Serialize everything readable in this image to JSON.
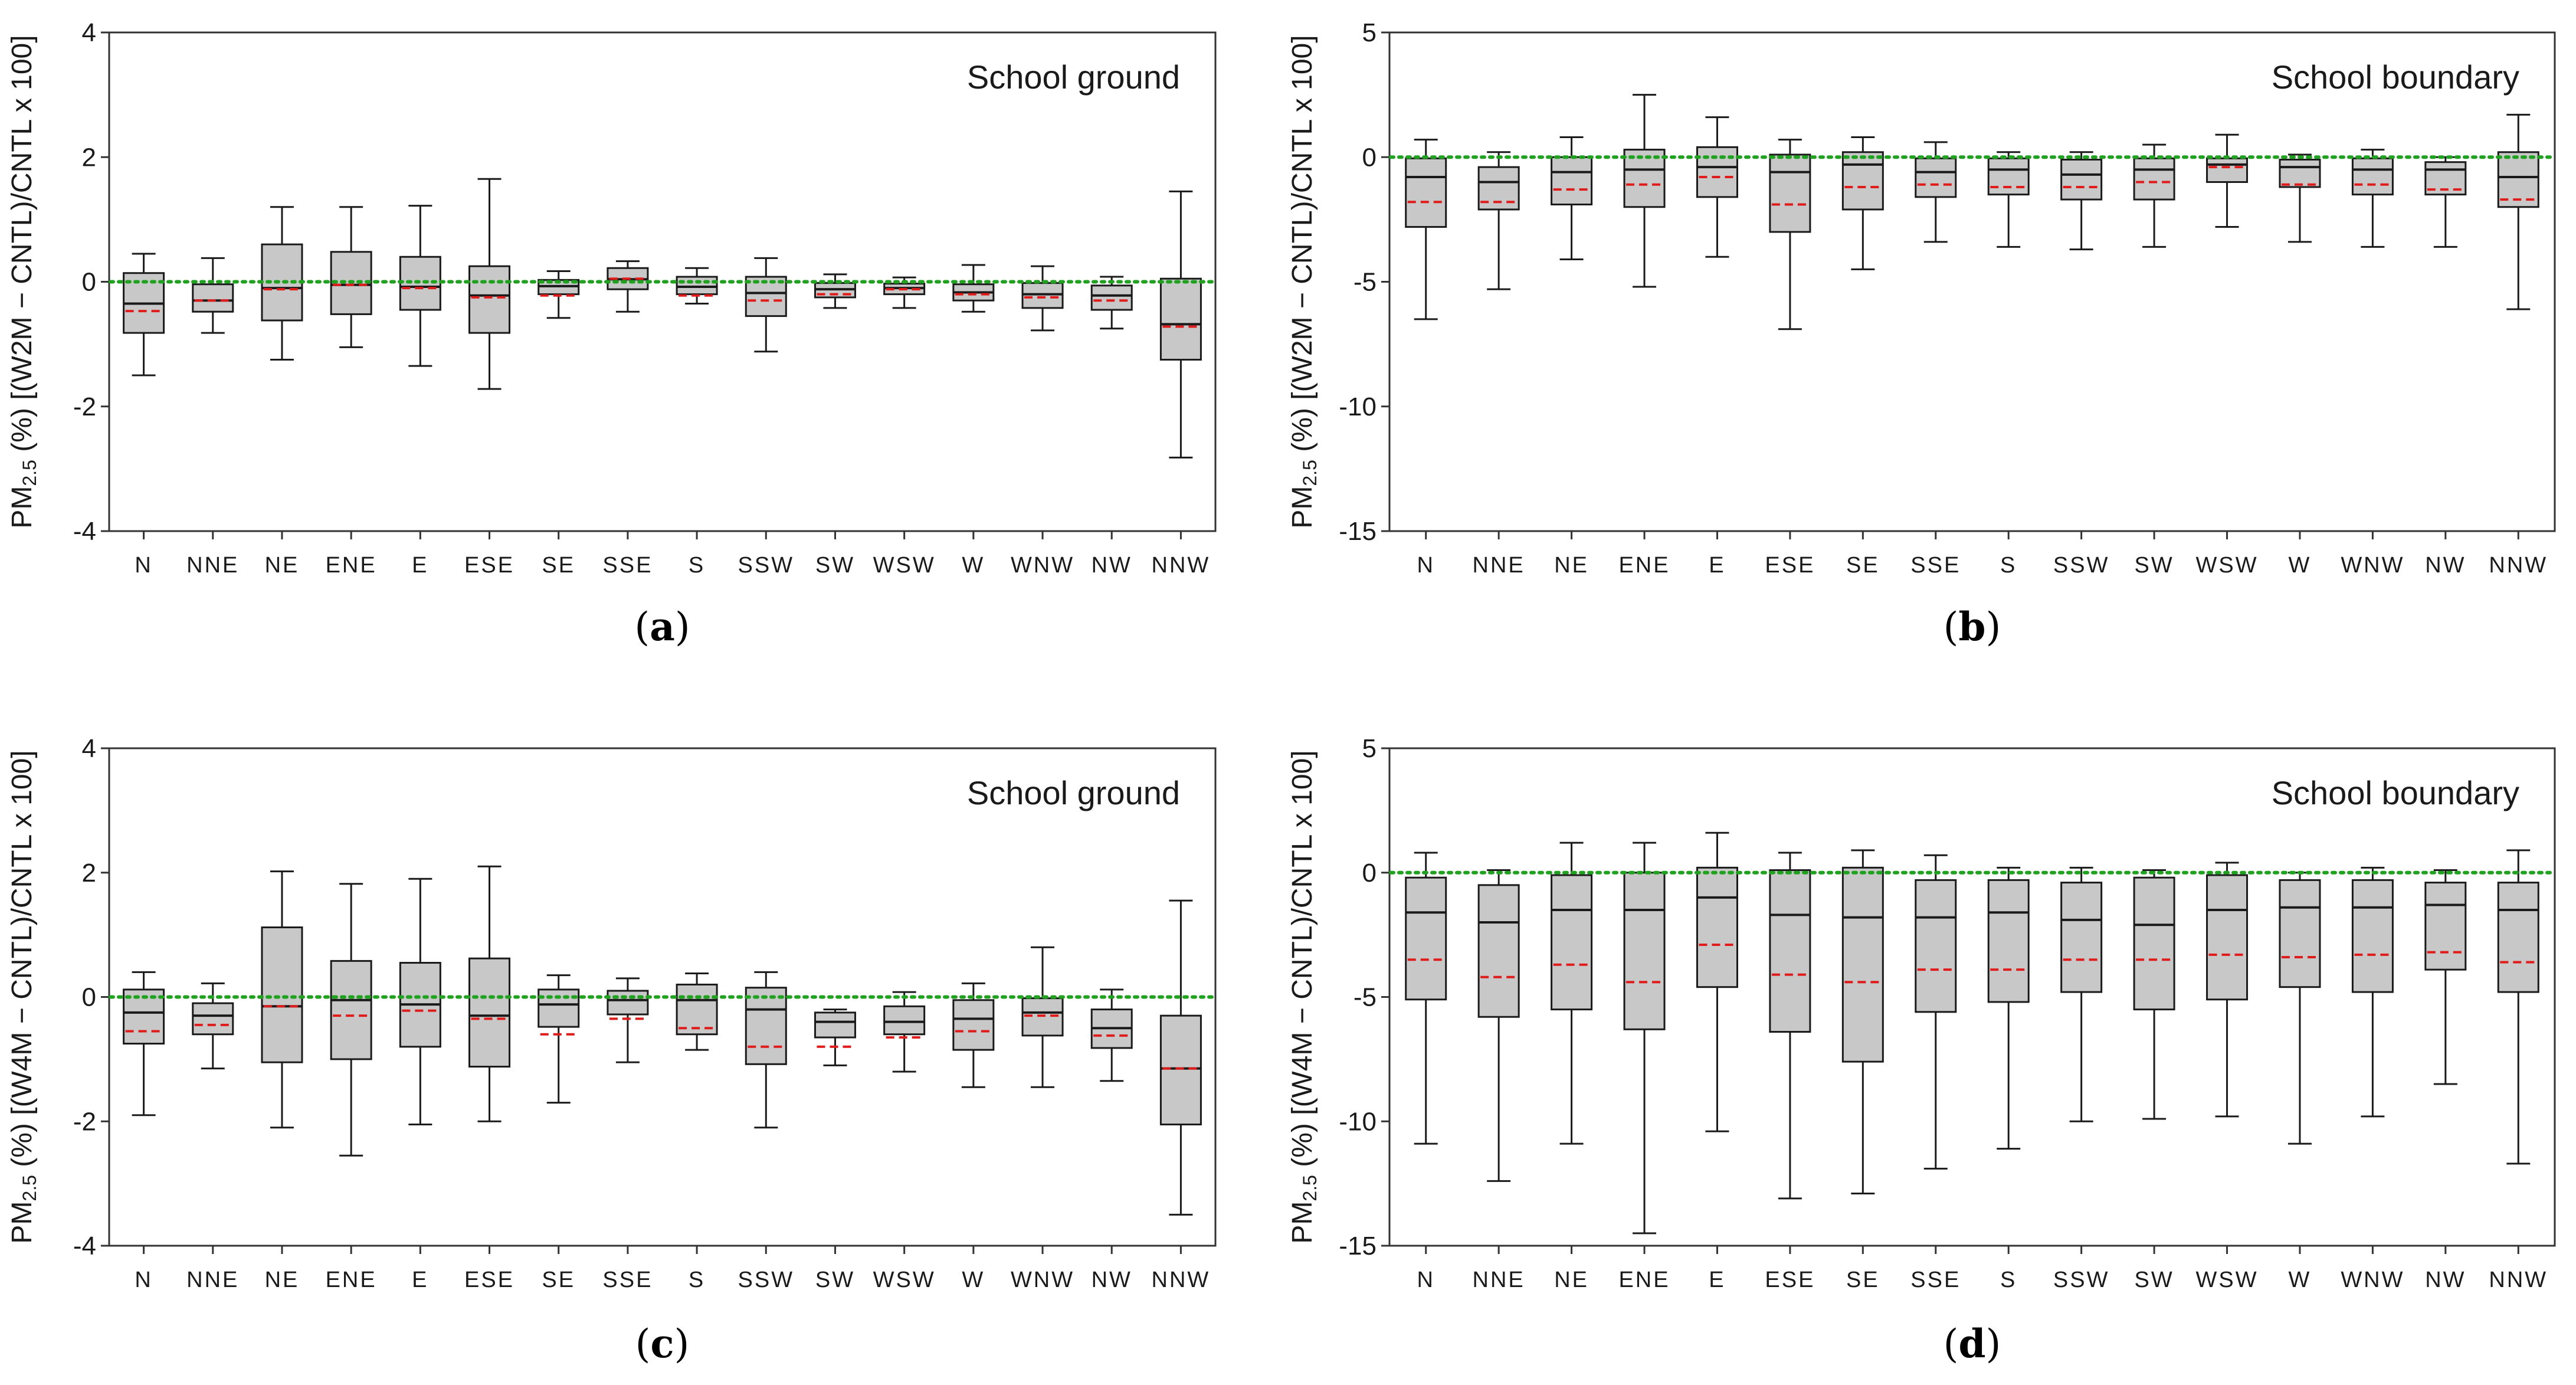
{
  "chart_data": [
    {
      "id": "a",
      "panel_label": "a",
      "type": "box",
      "title": "School ground",
      "ylabel": {
        "prefix": "PM",
        "subscript": "2.5",
        "rest": " (%) [(W2M − CNTL)/CNTL x 100]"
      },
      "ylim": [
        -4,
        4
      ],
      "yticks": [
        4,
        2,
        0,
        -2,
        -4
      ],
      "reference_line": 0,
      "categories": [
        "N",
        "NNE",
        "NE",
        "ENE",
        "E",
        "ESE",
        "SE",
        "SSE",
        "S",
        "SSW",
        "SW",
        "WSW",
        "W",
        "WNW",
        "NW",
        "NNW"
      ],
      "boxes": [
        {
          "whislo": -1.5,
          "q1": -0.82,
          "med": -0.35,
          "q3": 0.14,
          "whishi": 0.45,
          "mean": -0.47
        },
        {
          "whislo": -0.82,
          "q1": -0.48,
          "med": -0.3,
          "q3": -0.04,
          "whishi": 0.38,
          "mean": -0.3
        },
        {
          "whislo": -1.25,
          "q1": -0.62,
          "med": -0.1,
          "q3": 0.6,
          "whishi": 1.2,
          "mean": -0.12
        },
        {
          "whislo": -1.05,
          "q1": -0.52,
          "med": -0.05,
          "q3": 0.48,
          "whishi": 1.2,
          "mean": -0.05
        },
        {
          "whislo": -1.35,
          "q1": -0.45,
          "med": -0.08,
          "q3": 0.4,
          "whishi": 1.22,
          "mean": -0.1
        },
        {
          "whislo": -1.72,
          "q1": -0.82,
          "med": -0.22,
          "q3": 0.25,
          "whishi": 1.65,
          "mean": -0.25
        },
        {
          "whislo": -0.58,
          "q1": -0.2,
          "med": -0.07,
          "q3": 0.03,
          "whishi": 0.17,
          "mean": -0.22
        },
        {
          "whislo": -0.48,
          "q1": -0.12,
          "med": 0.04,
          "q3": 0.22,
          "whishi": 0.33,
          "mean": 0.05
        },
        {
          "whislo": -0.35,
          "q1": -0.2,
          "med": -0.08,
          "q3": 0.08,
          "whishi": 0.22,
          "mean": -0.22
        },
        {
          "whislo": -1.12,
          "q1": -0.55,
          "med": -0.18,
          "q3": 0.08,
          "whishi": 0.38,
          "mean": -0.3
        },
        {
          "whislo": -0.42,
          "q1": -0.25,
          "med": -0.12,
          "q3": -0.02,
          "whishi": 0.12,
          "mean": -0.2
        },
        {
          "whislo": -0.42,
          "q1": -0.2,
          "med": -0.1,
          "q3": -0.03,
          "whishi": 0.07,
          "mean": -0.12
        },
        {
          "whislo": -0.48,
          "q1": -0.3,
          "med": -0.17,
          "q3": -0.04,
          "whishi": 0.27,
          "mean": -0.2
        },
        {
          "whislo": -0.78,
          "q1": -0.42,
          "med": -0.2,
          "q3": -0.02,
          "whishi": 0.25,
          "mean": -0.25
        },
        {
          "whislo": -0.75,
          "q1": -0.45,
          "med": -0.22,
          "q3": -0.06,
          "whishi": 0.08,
          "mean": -0.3
        },
        {
          "whislo": -2.82,
          "q1": -1.25,
          "med": -0.68,
          "q3": 0.05,
          "whishi": 1.45,
          "mean": -0.72
        }
      ]
    },
    {
      "id": "b",
      "panel_label": "b",
      "type": "box",
      "title": "School boundary",
      "ylabel": {
        "prefix": "PM",
        "subscript": "2.5",
        "rest": " (%) [(W2M − CNTL)/CNTL x 100]"
      },
      "ylim": [
        -15,
        5
      ],
      "yticks": [
        5,
        0,
        -5,
        -10,
        -15
      ],
      "reference_line": 0,
      "categories": [
        "N",
        "NNE",
        "NE",
        "ENE",
        "E",
        "ESE",
        "SE",
        "SSE",
        "S",
        "SSW",
        "SW",
        "WSW",
        "W",
        "WNW",
        "NW",
        "NNW"
      ],
      "boxes": [
        {
          "whislo": -6.5,
          "q1": -2.8,
          "med": -0.8,
          "q3": -0.05,
          "whishi": 0.7,
          "mean": -1.8
        },
        {
          "whislo": -5.3,
          "q1": -2.1,
          "med": -1.0,
          "q3": -0.4,
          "whishi": 0.2,
          "mean": -1.8
        },
        {
          "whislo": -4.1,
          "q1": -1.9,
          "med": -0.6,
          "q3": 0.0,
          "whishi": 0.8,
          "mean": -1.3
        },
        {
          "whislo": -5.2,
          "q1": -2.0,
          "med": -0.5,
          "q3": 0.3,
          "whishi": 2.5,
          "mean": -1.1
        },
        {
          "whislo": -4.0,
          "q1": -1.6,
          "med": -0.4,
          "q3": 0.4,
          "whishi": 1.6,
          "mean": -0.8
        },
        {
          "whislo": -6.9,
          "q1": -3.0,
          "med": -0.6,
          "q3": 0.1,
          "whishi": 0.7,
          "mean": -1.9
        },
        {
          "whislo": -4.5,
          "q1": -2.1,
          "med": -0.3,
          "q3": 0.2,
          "whishi": 0.8,
          "mean": -1.2
        },
        {
          "whislo": -3.4,
          "q1": -1.6,
          "med": -0.6,
          "q3": -0.05,
          "whishi": 0.6,
          "mean": -1.1
        },
        {
          "whislo": -3.6,
          "q1": -1.5,
          "med": -0.5,
          "q3": -0.05,
          "whishi": 0.2,
          "mean": -1.2
        },
        {
          "whislo": -3.7,
          "q1": -1.7,
          "med": -0.7,
          "q3": -0.1,
          "whishi": 0.2,
          "mean": -1.2
        },
        {
          "whislo": -3.6,
          "q1": -1.7,
          "med": -0.5,
          "q3": -0.05,
          "whishi": 0.5,
          "mean": -1.0
        },
        {
          "whislo": -2.8,
          "q1": -1.0,
          "med": -0.3,
          "q3": -0.05,
          "whishi": 0.9,
          "mean": -0.4
        },
        {
          "whislo": -3.4,
          "q1": -1.2,
          "med": -0.4,
          "q3": -0.1,
          "whishi": 0.1,
          "mean": -1.1
        },
        {
          "whislo": -3.6,
          "q1": -1.5,
          "med": -0.5,
          "q3": -0.05,
          "whishi": 0.3,
          "mean": -1.1
        },
        {
          "whislo": -3.6,
          "q1": -1.5,
          "med": -0.5,
          "q3": -0.2,
          "whishi": 0.0,
          "mean": -1.3
        },
        {
          "whislo": -6.1,
          "q1": -2.0,
          "med": -0.8,
          "q3": 0.2,
          "whishi": 1.7,
          "mean": -1.7
        }
      ]
    },
    {
      "id": "c",
      "panel_label": "c",
      "type": "box",
      "title": "School ground",
      "ylabel": {
        "prefix": "PM",
        "subscript": "2.5",
        "rest": " (%) [(W4M − CNTL)/CNTL x 100]"
      },
      "ylim": [
        -4,
        4
      ],
      "yticks": [
        4,
        2,
        0,
        -2,
        -4
      ],
      "reference_line": 0,
      "categories": [
        "N",
        "NNE",
        "NE",
        "ENE",
        "E",
        "ESE",
        "SE",
        "SSE",
        "S",
        "SSW",
        "SW",
        "WSW",
        "W",
        "WNW",
        "NW",
        "NNW"
      ],
      "boxes": [
        {
          "whislo": -1.9,
          "q1": -0.75,
          "med": -0.25,
          "q3": 0.12,
          "whishi": 0.4,
          "mean": -0.55
        },
        {
          "whislo": -1.15,
          "q1": -0.6,
          "med": -0.3,
          "q3": -0.1,
          "whishi": 0.22,
          "mean": -0.45
        },
        {
          "whislo": -2.1,
          "q1": -1.05,
          "med": -0.15,
          "q3": 1.12,
          "whishi": 2.02,
          "mean": -0.15
        },
        {
          "whislo": -2.55,
          "q1": -1.0,
          "med": -0.05,
          "q3": 0.58,
          "whishi": 1.82,
          "mean": -0.3
        },
        {
          "whislo": -2.05,
          "q1": -0.8,
          "med": -0.12,
          "q3": 0.55,
          "whishi": 1.9,
          "mean": -0.22
        },
        {
          "whislo": -2.0,
          "q1": -1.12,
          "med": -0.3,
          "q3": 0.62,
          "whishi": 2.1,
          "mean": -0.35
        },
        {
          "whislo": -1.7,
          "q1": -0.48,
          "med": -0.12,
          "q3": 0.12,
          "whishi": 0.35,
          "mean": -0.6
        },
        {
          "whislo": -1.05,
          "q1": -0.28,
          "med": -0.05,
          "q3": 0.1,
          "whishi": 0.3,
          "mean": -0.35
        },
        {
          "whislo": -0.85,
          "q1": -0.6,
          "med": -0.05,
          "q3": 0.2,
          "whishi": 0.38,
          "mean": -0.5
        },
        {
          "whislo": -2.1,
          "q1": -1.08,
          "med": -0.2,
          "q3": 0.15,
          "whishi": 0.4,
          "mean": -0.8
        },
        {
          "whislo": -1.1,
          "q1": -0.65,
          "med": -0.4,
          "q3": -0.25,
          "whishi": -0.2,
          "mean": -0.8
        },
        {
          "whislo": -1.2,
          "q1": -0.6,
          "med": -0.4,
          "q3": -0.15,
          "whishi": 0.08,
          "mean": -0.65
        },
        {
          "whislo": -1.45,
          "q1": -0.85,
          "med": -0.35,
          "q3": -0.05,
          "whishi": 0.22,
          "mean": -0.55
        },
        {
          "whislo": -1.45,
          "q1": -0.62,
          "med": -0.25,
          "q3": -0.02,
          "whishi": 0.8,
          "mean": -0.3
        },
        {
          "whislo": -1.35,
          "q1": -0.82,
          "med": -0.5,
          "q3": -0.2,
          "whishi": 0.12,
          "mean": -0.62
        },
        {
          "whislo": -3.5,
          "q1": -2.05,
          "med": -1.15,
          "q3": -0.3,
          "whishi": 1.55,
          "mean": -1.15
        }
      ]
    },
    {
      "id": "d",
      "panel_label": "d",
      "type": "box",
      "title": "School boundary",
      "ylabel": {
        "prefix": "PM",
        "subscript": "2.5",
        "rest": " (%) [(W4M − CNTL)/CNTL x 100]"
      },
      "ylim": [
        -15,
        5
      ],
      "yticks": [
        5,
        0,
        -5,
        -10,
        -15
      ],
      "reference_line": 0,
      "categories": [
        "N",
        "NNE",
        "NE",
        "ENE",
        "E",
        "ESE",
        "SE",
        "SSE",
        "S",
        "SSW",
        "SW",
        "WSW",
        "W",
        "WNW",
        "NW",
        "NNW"
      ],
      "boxes": [
        {
          "whislo": -10.9,
          "q1": -5.1,
          "med": -1.6,
          "q3": -0.2,
          "whishi": 0.8,
          "mean": -3.5
        },
        {
          "whislo": -12.4,
          "q1": -5.8,
          "med": -2.0,
          "q3": -0.5,
          "whishi": 0.1,
          "mean": -4.2
        },
        {
          "whislo": -10.9,
          "q1": -5.5,
          "med": -1.5,
          "q3": -0.1,
          "whishi": 1.2,
          "mean": -3.7
        },
        {
          "whislo": -14.5,
          "q1": -6.3,
          "med": -1.5,
          "q3": 0.0,
          "whishi": 1.2,
          "mean": -4.4
        },
        {
          "whislo": -10.4,
          "q1": -4.6,
          "med": -1.0,
          "q3": 0.2,
          "whishi": 1.6,
          "mean": -2.9
        },
        {
          "whislo": -13.1,
          "q1": -6.4,
          "med": -1.7,
          "q3": 0.1,
          "whishi": 0.8,
          "mean": -4.1
        },
        {
          "whislo": -12.9,
          "q1": -7.6,
          "med": -1.8,
          "q3": 0.2,
          "whishi": 0.9,
          "mean": -4.4
        },
        {
          "whislo": -11.9,
          "q1": -5.6,
          "med": -1.8,
          "q3": -0.3,
          "whishi": 0.7,
          "mean": -3.9
        },
        {
          "whislo": -11.1,
          "q1": -5.2,
          "med": -1.6,
          "q3": -0.3,
          "whishi": 0.2,
          "mean": -3.9
        },
        {
          "whislo": -10.0,
          "q1": -4.8,
          "med": -1.9,
          "q3": -0.4,
          "whishi": 0.2,
          "mean": -3.5
        },
        {
          "whislo": -9.9,
          "q1": -5.5,
          "med": -2.1,
          "q3": -0.2,
          "whishi": 0.1,
          "mean": -3.5
        },
        {
          "whislo": -9.8,
          "q1": -5.1,
          "med": -1.5,
          "q3": -0.1,
          "whishi": 0.4,
          "mean": -3.3
        },
        {
          "whislo": -10.9,
          "q1": -4.6,
          "med": -1.4,
          "q3": -0.3,
          "whishi": 0.0,
          "mean": -3.4
        },
        {
          "whislo": -9.8,
          "q1": -4.8,
          "med": -1.4,
          "q3": -0.3,
          "whishi": 0.2,
          "mean": -3.3
        },
        {
          "whislo": -8.5,
          "q1": -3.9,
          "med": -1.3,
          "q3": -0.4,
          "whishi": 0.1,
          "mean": -3.2
        },
        {
          "whislo": -11.7,
          "q1": -4.8,
          "med": -1.5,
          "q3": -0.4,
          "whishi": 0.9,
          "mean": -3.6
        }
      ]
    }
  ],
  "colors": {
    "box_fill": "#c8c8c8",
    "box_stroke": "#1a1a1a",
    "mean_line": "#e11a1a",
    "reference_line": "#1fa31f",
    "axis": "#333333"
  }
}
